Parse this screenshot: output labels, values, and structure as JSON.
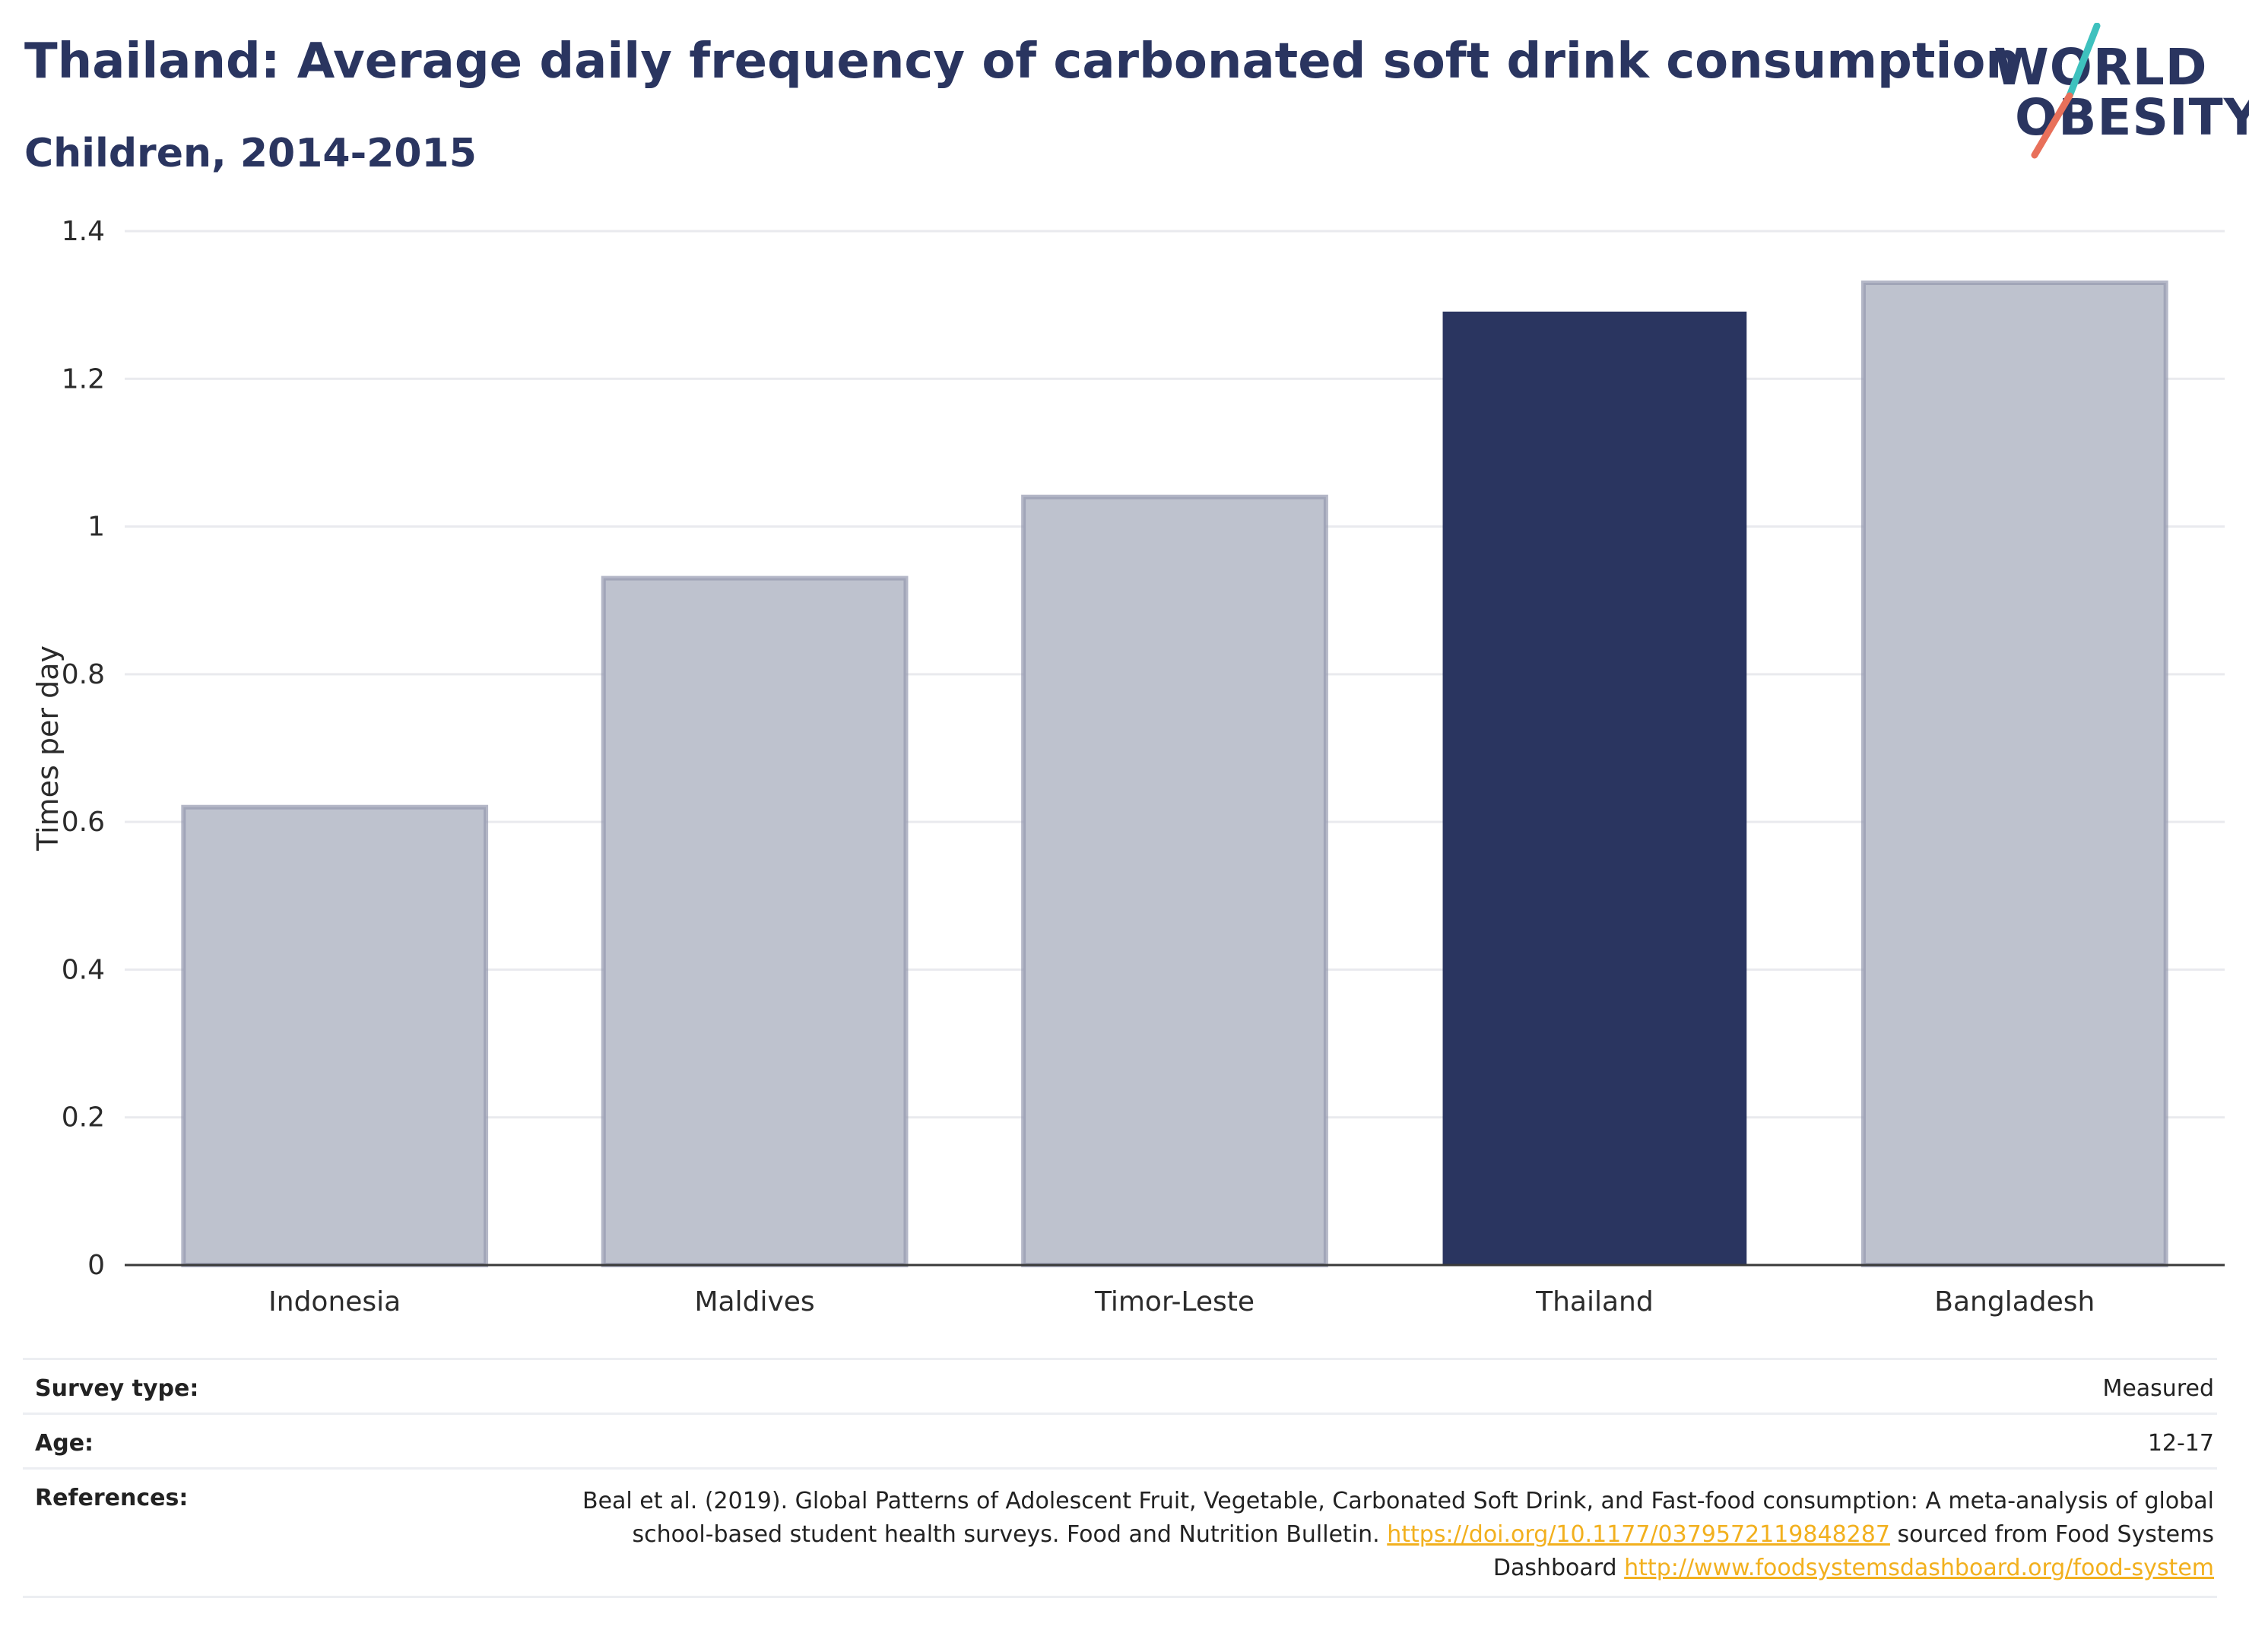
{
  "header": {
    "title": "Thailand: Average daily frequency of carbonated soft drink consumption",
    "subtitle": "Children, 2014-2015"
  },
  "logo": {
    "line1": "WORLD",
    "line2": "OBESITY",
    "accent_colors": [
      "#3ec1be",
      "#e8705a"
    ]
  },
  "chart_data": {
    "type": "bar",
    "categories": [
      "Indonesia",
      "Maldives",
      "Timor-Leste",
      "Thailand",
      "Bangladesh"
    ],
    "values": [
      0.62,
      0.93,
      1.04,
      1.29,
      1.33
    ],
    "highlight": "Thailand",
    "ylabel": "Times per day",
    "xlabel": "",
    "ylim": [
      0,
      1.4
    ],
    "yticks": [
      0,
      0.2,
      0.4,
      0.6,
      0.8,
      1,
      1.2,
      1.4
    ],
    "ytick_labels": [
      "0",
      "0.2",
      "0.4",
      "0.6",
      "0.8",
      "1",
      "1.2",
      "1.4"
    ],
    "grid": true,
    "colors": {
      "highlight": "#2a3560",
      "other": "#bec2ce",
      "other_stroke": "#9499af"
    }
  },
  "info_table": {
    "survey_type_label": "Survey type:",
    "survey_type_value": "Measured",
    "age_label": "Age:",
    "age_value": "12-17",
    "references_label": "References:",
    "references_text_1": "Beal et al. (2019). Global Patterns of Adolescent Fruit, Vegetable, Carbonated Soft Drink, and Fast-food consumption: A meta-analysis of global school-based student health surveys. Food and Nutrition Bulletin.",
    "references_link_1": "https://doi.org/10.1177/0379572119848287",
    "references_text_2": "sourced from Food Systems Dashboard",
    "references_link_2": "http://www.foodsystemsdashboard.org/food-system"
  }
}
